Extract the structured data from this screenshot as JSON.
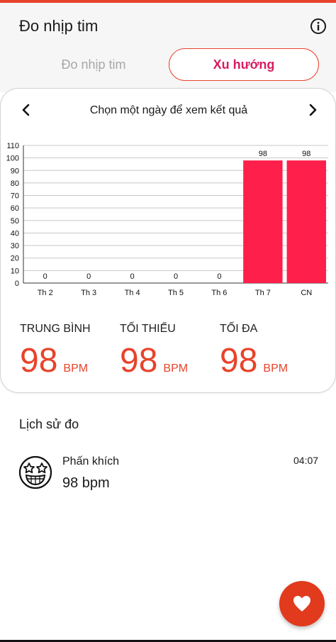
{
  "header": {
    "title": "Đo nhịp tim",
    "info_icon": "info-icon"
  },
  "tabs": [
    {
      "label": "Đo nhịp tim",
      "active": false
    },
    {
      "label": "Xu hướng",
      "active": true
    }
  ],
  "card": {
    "title": "Chọn một ngày để xem kết quả",
    "prev_icon": "chevron-left-icon",
    "next_icon": "chevron-right-icon"
  },
  "chart_data": {
    "type": "bar",
    "categories": [
      "Th 2",
      "Th 3",
      "Th 4",
      "Th 5",
      "Th 6",
      "Th 7",
      "CN"
    ],
    "values": [
      0,
      0,
      0,
      0,
      0,
      98,
      98
    ],
    "data_labels": [
      "0",
      "0",
      "0",
      "0",
      "0",
      "98",
      "98"
    ],
    "yticks": [
      0,
      10,
      20,
      30,
      40,
      50,
      60,
      70,
      80,
      90,
      100,
      110
    ],
    "ylim": [
      0,
      110
    ],
    "grid": true,
    "legend": "none",
    "bar_color": "#ff1f4b"
  },
  "stats": [
    {
      "label": "TRUNG BÌNH",
      "value": "98",
      "unit": "BPM"
    },
    {
      "label": "TỐI THIỂU",
      "value": "98",
      "unit": "BPM"
    },
    {
      "label": "TỐI ĐA",
      "value": "98",
      "unit": "BPM"
    }
  ],
  "history": {
    "title": "Lịch sử đo",
    "items": [
      {
        "mood": "Phấn khích",
        "value": "98 bpm",
        "time": "04:07",
        "icon": "star-struck-face-icon"
      }
    ]
  },
  "fab": {
    "icon": "heart-icon"
  },
  "colors": {
    "accent": "#e8432b",
    "tab_active_text": "#d81b60",
    "bar": "#ff1f4b"
  }
}
